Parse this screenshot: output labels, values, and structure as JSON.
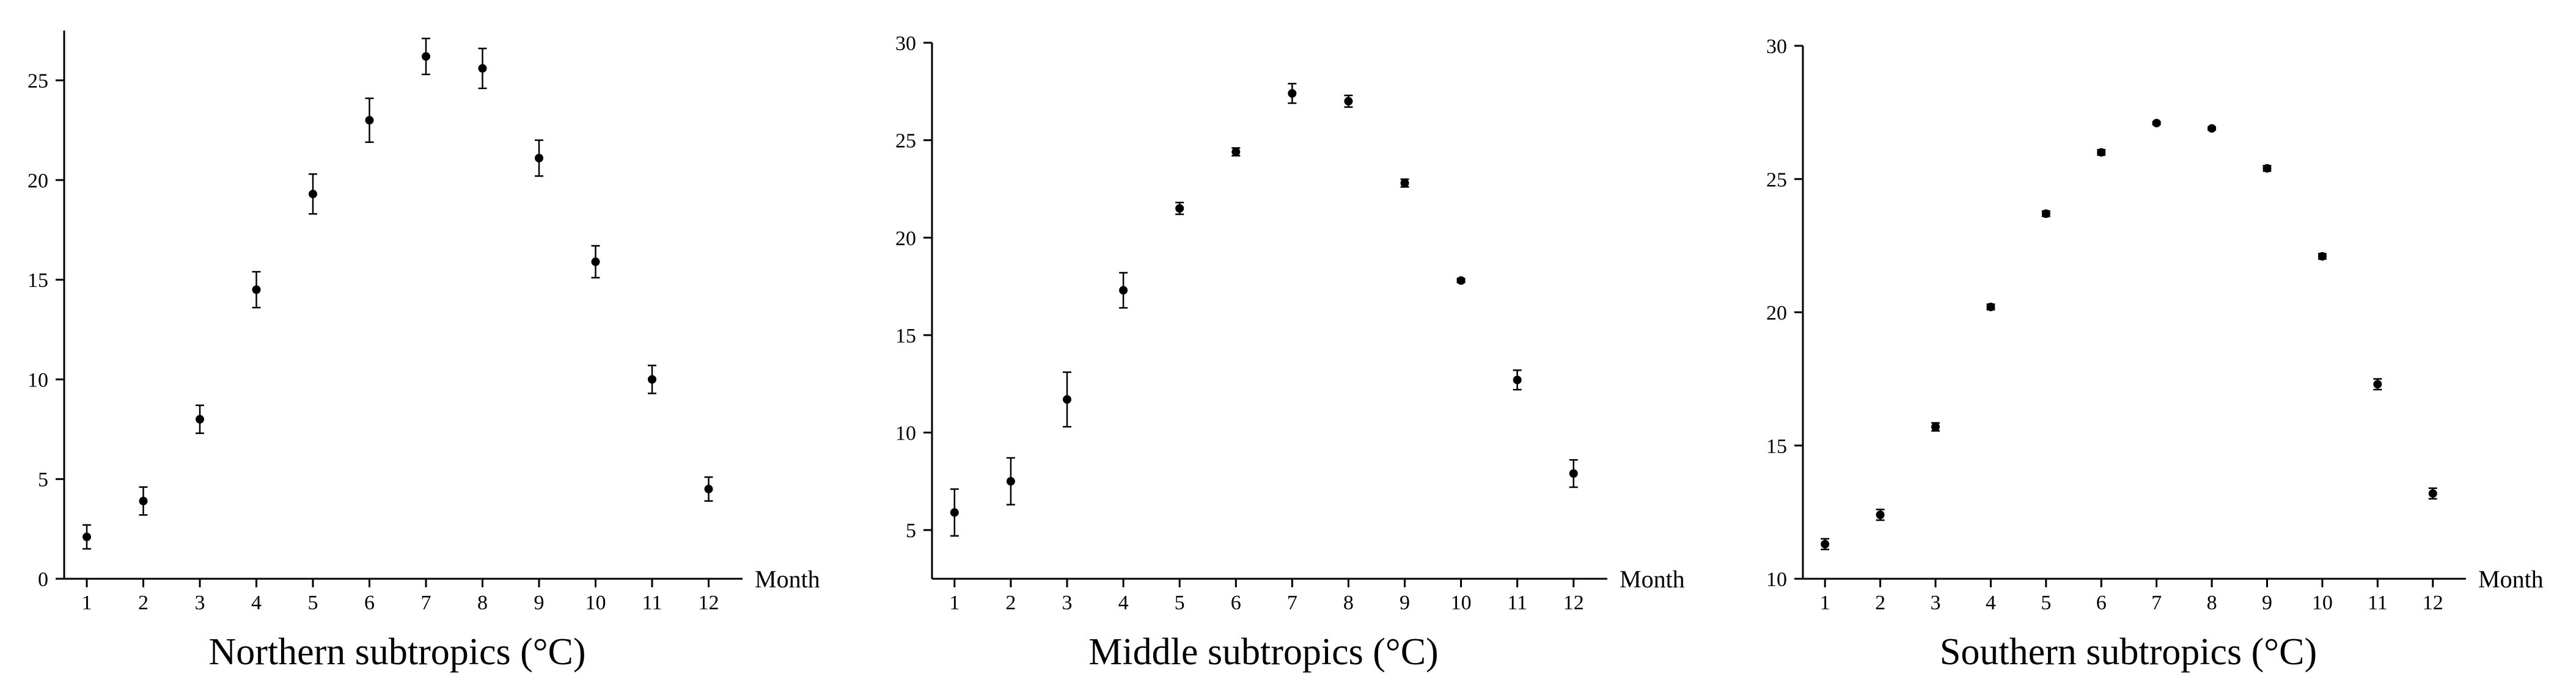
{
  "chart_data": [
    {
      "type": "scatter",
      "title": "Northern subtropics (°C)",
      "xlabel": "Month",
      "ylabel": "",
      "x": [
        1,
        2,
        3,
        4,
        5,
        6,
        7,
        8,
        9,
        10,
        11,
        12
      ],
      "x_ticks": [
        "1",
        "2",
        "3",
        "4",
        "5",
        "6",
        "7",
        "8",
        "9",
        "10",
        "11",
        "12"
      ],
      "xlim": [
        0.6,
        12.6
      ],
      "ylim": [
        0,
        27.5
      ],
      "y_ticks": [
        0,
        5,
        10,
        15,
        20,
        25
      ],
      "series": [
        {
          "y": [
            2.1,
            3.9,
            8.0,
            14.5,
            19.3,
            23.0,
            26.2,
            25.6,
            21.1,
            15.9,
            10.0,
            4.5
          ],
          "err": [
            0.6,
            0.7,
            0.7,
            0.9,
            1.0,
            1.1,
            0.9,
            1.0,
            0.9,
            0.8,
            0.7,
            0.6
          ]
        }
      ],
      "error_bars": true,
      "grid": false,
      "legend": "none"
    },
    {
      "type": "scatter",
      "title": "Middle subtropics (°C)",
      "xlabel": "Month",
      "ylabel": "",
      "x": [
        1,
        2,
        3,
        4,
        5,
        6,
        7,
        8,
        9,
        10,
        11,
        12
      ],
      "x_ticks": [
        "1",
        "2",
        "3",
        "4",
        "5",
        "6",
        "7",
        "8",
        "9",
        "10",
        "11",
        "12"
      ],
      "xlim": [
        0.6,
        12.6
      ],
      "ylim": [
        2.5,
        30
      ],
      "y_ticks": [
        5,
        10,
        15,
        20,
        25,
        30
      ],
      "series": [
        {
          "y": [
            5.9,
            7.5,
            11.7,
            17.3,
            21.5,
            24.4,
            27.4,
            27.0,
            22.8,
            17.8,
            12.7,
            7.9
          ],
          "err": [
            1.2,
            1.2,
            1.4,
            0.9,
            0.3,
            0.2,
            0.5,
            0.3,
            0.2,
            0.1,
            0.5,
            0.7
          ]
        }
      ],
      "error_bars": true,
      "grid": false,
      "legend": "none"
    },
    {
      "type": "scatter",
      "title": "Southern subtropics (°C)",
      "xlabel": "Month",
      "ylabel": "",
      "x": [
        1,
        2,
        3,
        4,
        5,
        6,
        7,
        8,
        9,
        10,
        11,
        12
      ],
      "x_ticks": [
        "1",
        "2",
        "3",
        "4",
        "5",
        "6",
        "7",
        "8",
        "9",
        "10",
        "11",
        "12"
      ],
      "xlim": [
        0.6,
        12.6
      ],
      "ylim": [
        10,
        30
      ],
      "y_ticks": [
        10,
        15,
        20,
        25,
        30
      ],
      "series": [
        {
          "y": [
            11.3,
            12.4,
            15.7,
            20.2,
            23.7,
            26.0,
            27.1,
            26.9,
            25.4,
            22.1,
            17.3,
            13.2
          ],
          "err": [
            0.2,
            0.2,
            0.15,
            0.1,
            0.1,
            0.1,
            0.05,
            0.05,
            0.1,
            0.1,
            0.2,
            0.2
          ]
        }
      ],
      "error_bars": true,
      "grid": false,
      "legend": "none"
    }
  ]
}
